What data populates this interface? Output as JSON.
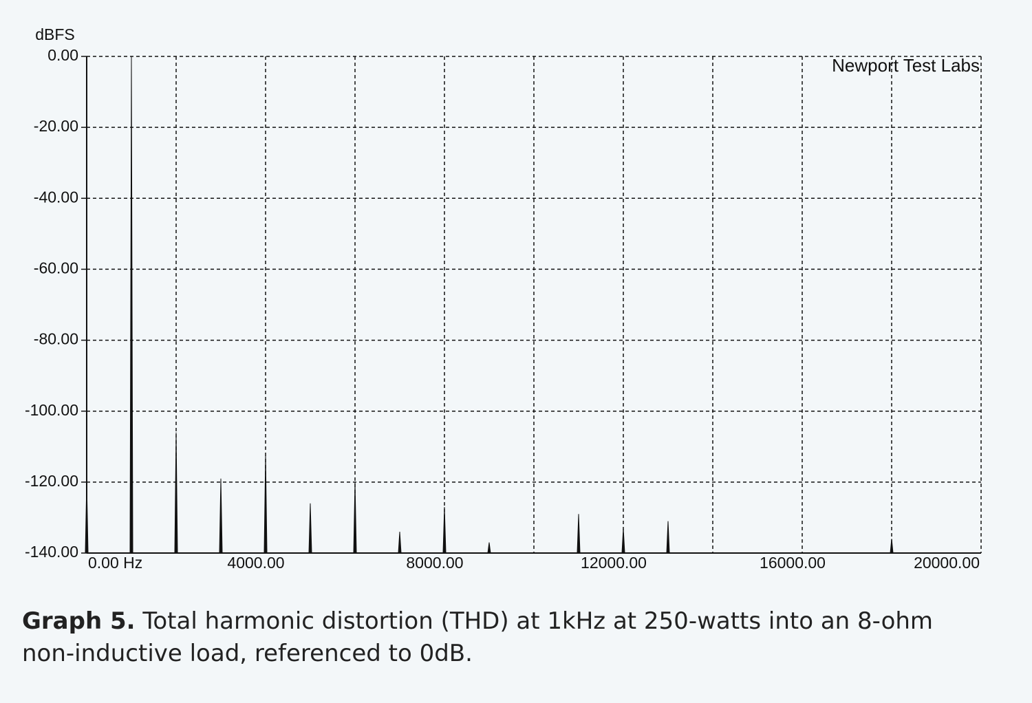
{
  "chart_data": {
    "type": "spectrum",
    "y_label": "dBFS",
    "annotation": "Newport Test Labs",
    "caption_lead": "Graph 5.",
    "caption": "Total harmonic distortion (THD) at 1kHz at 250-watts into an 8-ohm non-inductive load, referenced to 0dB.",
    "x": [
      0,
      1000,
      2000,
      3000,
      4000,
      5000,
      6000,
      7000,
      8000,
      9000,
      11000,
      12000,
      13000,
      18000
    ],
    "values": [
      -120,
      0,
      -106,
      -119,
      -112,
      -126,
      -120,
      -134,
      -127,
      -137,
      -129,
      -133,
      -131,
      -136
    ],
    "color": "#111111",
    "xlim": [
      0,
      20000
    ],
    "ylim": [
      -140,
      0
    ],
    "xticks": [
      {
        "value": 0,
        "label": "0.00 Hz"
      },
      {
        "value": 4000,
        "label": "4000.00"
      },
      {
        "value": 8000,
        "label": "8000.00"
      },
      {
        "value": 12000,
        "label": "12000.00"
      },
      {
        "value": 16000,
        "label": "16000.00"
      },
      {
        "value": 20000,
        "label": "20000.00"
      }
    ],
    "xminor_ticks": [
      2000,
      6000,
      10000,
      14000,
      18000
    ],
    "yticks": [
      {
        "value": 0,
        "label": "0.00"
      },
      {
        "value": -20,
        "label": "-20.00"
      },
      {
        "value": -40,
        "label": "-40.00"
      },
      {
        "value": -60,
        "label": "-60.00"
      },
      {
        "value": -80,
        "label": "-80.00"
      },
      {
        "value": -100,
        "label": "-100.00"
      },
      {
        "value": -120,
        "label": "-120.00"
      },
      {
        "value": -140,
        "label": "-140.00"
      }
    ],
    "grid": true
  }
}
